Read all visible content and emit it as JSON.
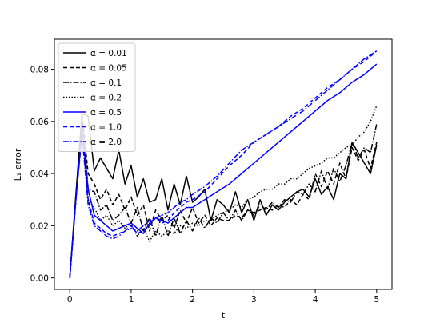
{
  "chart_data": {
    "type": "line",
    "xlabel": "t",
    "ylabel": "L₁ error",
    "xlim": [
      -0.25,
      5.25
    ],
    "ylim": [
      -0.0044,
      0.0915
    ],
    "xticks": [
      0,
      1,
      2,
      3,
      4,
      5
    ],
    "xtick_labels": [
      "0",
      "1",
      "2",
      "3",
      "4",
      "5"
    ],
    "yticks": [
      0.0,
      0.02,
      0.04,
      0.06,
      0.08
    ],
    "ytick_labels": [
      "0.00",
      "0.02",
      "0.04",
      "0.06",
      "0.08"
    ],
    "grid": false,
    "legend_position": "top-left",
    "series": [
      {
        "name": "α = 0.01",
        "color": "#000000",
        "dash": "solid",
        "x": [
          0,
          0.1,
          0.2,
          0.3,
          0.4,
          0.5,
          0.6,
          0.7,
          0.8,
          0.9,
          1.0,
          1.1,
          1.2,
          1.3,
          1.4,
          1.5,
          1.6,
          1.7,
          1.8,
          1.9,
          2.0,
          2.1,
          2.2,
          2.3,
          2.4,
          2.5,
          2.6,
          2.7,
          2.8,
          2.9,
          3.0,
          3.1,
          3.2,
          3.3,
          3.4,
          3.5,
          3.6,
          3.7,
          3.8,
          3.9,
          4.0,
          4.1,
          4.2,
          4.3,
          4.4,
          4.5,
          4.6,
          4.7,
          4.8,
          4.9,
          5.0
        ],
        "y": [
          0.0,
          0.032,
          0.063,
          0.062,
          0.041,
          0.046,
          0.042,
          0.038,
          0.049,
          0.036,
          0.043,
          0.031,
          0.038,
          0.029,
          0.03,
          0.038,
          0.026,
          0.036,
          0.028,
          0.039,
          0.029,
          0.031,
          0.034,
          0.022,
          0.03,
          0.028,
          0.025,
          0.033,
          0.025,
          0.03,
          0.022,
          0.03,
          0.024,
          0.028,
          0.026,
          0.029,
          0.031,
          0.033,
          0.034,
          0.031,
          0.038,
          0.032,
          0.035,
          0.03,
          0.04,
          0.038,
          0.052,
          0.048,
          0.044,
          0.04,
          0.051
        ]
      },
      {
        "name": "α = 0.05",
        "color": "#000000",
        "dash": "5,3",
        "x": [
          0,
          0.1,
          0.2,
          0.3,
          0.4,
          0.5,
          0.6,
          0.7,
          0.8,
          0.9,
          1.0,
          1.1,
          1.2,
          1.3,
          1.4,
          1.5,
          1.6,
          1.7,
          1.8,
          1.9,
          2.0,
          2.1,
          2.2,
          2.3,
          2.4,
          2.5,
          2.6,
          2.7,
          2.8,
          2.9,
          3.0,
          3.1,
          3.2,
          3.3,
          3.4,
          3.5,
          3.6,
          3.7,
          3.8,
          3.9,
          4.0,
          4.1,
          4.2,
          4.3,
          4.4,
          4.5,
          4.6,
          4.7,
          4.8,
          4.9,
          5.0
        ],
        "y": [
          0.0,
          0.03,
          0.063,
          0.04,
          0.036,
          0.03,
          0.034,
          0.028,
          0.032,
          0.026,
          0.031,
          0.024,
          0.028,
          0.018,
          0.026,
          0.022,
          0.024,
          0.019,
          0.026,
          0.021,
          0.027,
          0.021,
          0.024,
          0.02,
          0.023,
          0.022,
          0.022,
          0.024,
          0.023,
          0.026,
          0.025,
          0.026,
          0.027,
          0.026,
          0.028,
          0.027,
          0.03,
          0.028,
          0.032,
          0.03,
          0.04,
          0.035,
          0.041,
          0.036,
          0.044,
          0.038,
          0.05,
          0.045,
          0.049,
          0.042,
          0.052
        ]
      },
      {
        "name": "α = 0.1",
        "color": "#000000",
        "dash": "7,2,1.5,2",
        "x": [
          0,
          0.1,
          0.2,
          0.3,
          0.4,
          0.5,
          0.6,
          0.7,
          0.8,
          0.9,
          1.0,
          1.1,
          1.2,
          1.3,
          1.4,
          1.5,
          1.6,
          1.7,
          1.8,
          1.9,
          2.0,
          2.1,
          2.2,
          2.3,
          2.4,
          2.5,
          2.6,
          2.7,
          2.8,
          2.9,
          3.0,
          3.1,
          3.2,
          3.3,
          3.4,
          3.5,
          3.6,
          3.7,
          3.8,
          3.9,
          4.0,
          4.1,
          4.2,
          4.3,
          4.4,
          4.5,
          4.6,
          4.7,
          4.8,
          4.9,
          5.0
        ],
        "y": [
          0.0,
          0.03,
          0.062,
          0.034,
          0.033,
          0.026,
          0.028,
          0.022,
          0.024,
          0.027,
          0.021,
          0.027,
          0.018,
          0.023,
          0.016,
          0.024,
          0.016,
          0.023,
          0.017,
          0.022,
          0.018,
          0.023,
          0.019,
          0.023,
          0.021,
          0.025,
          0.022,
          0.026,
          0.022,
          0.026,
          0.024,
          0.028,
          0.026,
          0.029,
          0.027,
          0.03,
          0.029,
          0.033,
          0.032,
          0.036,
          0.033,
          0.041,
          0.034,
          0.042,
          0.037,
          0.043,
          0.052,
          0.046,
          0.05,
          0.048,
          0.059
        ]
      },
      {
        "name": "α = 0.2",
        "color": "#000000",
        "dash": "1.5,2",
        "x": [
          0,
          0.1,
          0.2,
          0.3,
          0.4,
          0.5,
          0.6,
          0.7,
          0.8,
          0.9,
          1.0,
          1.1,
          1.2,
          1.3,
          1.4,
          1.5,
          1.6,
          1.7,
          1.8,
          1.9,
          2.0,
          2.1,
          2.2,
          2.3,
          2.4,
          2.5,
          2.6,
          2.7,
          2.8,
          2.9,
          3.0,
          3.1,
          3.2,
          3.3,
          3.4,
          3.5,
          3.6,
          3.7,
          3.8,
          3.9,
          4.0,
          4.1,
          4.2,
          4.3,
          4.4,
          4.5,
          4.6,
          4.7,
          4.8,
          4.9,
          5.0
        ],
        "y": [
          0.0,
          0.031,
          0.061,
          0.03,
          0.027,
          0.022,
          0.024,
          0.02,
          0.022,
          0.019,
          0.021,
          0.016,
          0.019,
          0.014,
          0.018,
          0.016,
          0.018,
          0.017,
          0.02,
          0.019,
          0.021,
          0.02,
          0.022,
          0.022,
          0.024,
          0.025,
          0.026,
          0.028,
          0.027,
          0.03,
          0.031,
          0.033,
          0.034,
          0.034,
          0.036,
          0.036,
          0.038,
          0.038,
          0.04,
          0.042,
          0.043,
          0.044,
          0.046,
          0.046,
          0.048,
          0.05,
          0.051,
          0.054,
          0.056,
          0.06,
          0.066
        ]
      },
      {
        "name": "α = 0.5",
        "color": "#0000ff",
        "dash": "solid",
        "x": [
          0,
          0.1,
          0.2,
          0.3,
          0.4,
          0.5,
          0.6,
          0.7,
          0.8,
          0.9,
          1.0,
          1.1,
          1.2,
          1.3,
          1.4,
          1.5,
          1.6,
          1.7,
          1.8,
          1.9,
          2.0,
          2.2,
          2.4,
          2.6,
          2.8,
          3.0,
          3.2,
          3.4,
          3.6,
          3.8,
          4.0,
          4.2,
          4.4,
          4.6,
          4.8,
          5.0
        ],
        "y": [
          0.0,
          0.03,
          0.057,
          0.034,
          0.024,
          0.022,
          0.02,
          0.018,
          0.019,
          0.02,
          0.021,
          0.019,
          0.017,
          0.021,
          0.023,
          0.022,
          0.021,
          0.023,
          0.025,
          0.027,
          0.027,
          0.03,
          0.033,
          0.036,
          0.04,
          0.044,
          0.048,
          0.052,
          0.056,
          0.06,
          0.064,
          0.068,
          0.071,
          0.075,
          0.078,
          0.082
        ]
      },
      {
        "name": "α = 1.0",
        "color": "#0000ff",
        "dash": "5,3",
        "x": [
          0,
          0.1,
          0.2,
          0.3,
          0.4,
          0.5,
          0.6,
          0.7,
          0.8,
          0.9,
          1.0,
          1.1,
          1.2,
          1.3,
          1.4,
          1.5,
          1.6,
          1.7,
          1.8,
          1.9,
          2.0,
          2.2,
          2.4,
          2.6,
          2.8,
          3.0,
          3.2,
          3.4,
          3.6,
          3.8,
          4.0,
          4.2,
          4.4,
          4.6,
          4.8,
          5.0
        ],
        "y": [
          0.0,
          0.03,
          0.056,
          0.03,
          0.021,
          0.019,
          0.017,
          0.016,
          0.017,
          0.018,
          0.02,
          0.017,
          0.018,
          0.02,
          0.023,
          0.021,
          0.022,
          0.025,
          0.027,
          0.029,
          0.03,
          0.033,
          0.038,
          0.043,
          0.047,
          0.052,
          0.055,
          0.058,
          0.062,
          0.065,
          0.069,
          0.073,
          0.076,
          0.08,
          0.083,
          0.087
        ]
      },
      {
        "name": "α = 2.0",
        "color": "#0000ff",
        "dash": "7,2,1.5,2",
        "x": [
          0,
          0.1,
          0.2,
          0.3,
          0.4,
          0.5,
          0.6,
          0.7,
          0.8,
          0.9,
          1.0,
          1.1,
          1.2,
          1.3,
          1.4,
          1.5,
          1.6,
          1.7,
          1.8,
          1.9,
          2.0,
          2.2,
          2.4,
          2.6,
          2.8,
          3.0,
          3.2,
          3.4,
          3.6,
          3.8,
          4.0,
          4.2,
          4.4,
          4.6,
          4.8,
          5.0
        ],
        "y": [
          0.0,
          0.03,
          0.055,
          0.028,
          0.02,
          0.018,
          0.016,
          0.015,
          0.016,
          0.018,
          0.019,
          0.018,
          0.02,
          0.022,
          0.023,
          0.024,
          0.025,
          0.027,
          0.029,
          0.03,
          0.032,
          0.035,
          0.039,
          0.044,
          0.049,
          0.052,
          0.055,
          0.058,
          0.061,
          0.064,
          0.068,
          0.072,
          0.076,
          0.08,
          0.084,
          0.087
        ]
      }
    ]
  }
}
